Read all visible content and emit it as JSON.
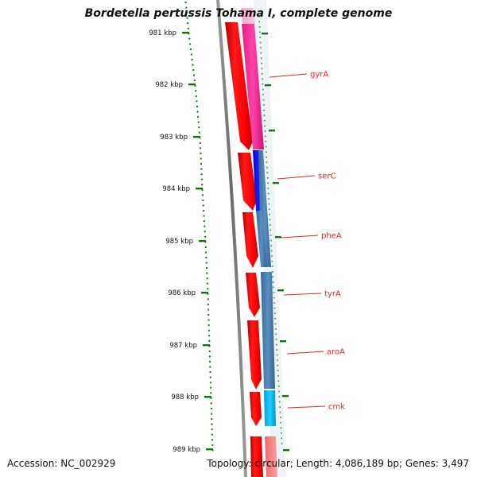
{
  "title": "Bordetella pertussis Tohama I, complete genome",
  "footer": {
    "accession": "Accession: NC_002929",
    "summary": "Topology: circular; Length: 4,086,189 bp; Genes: 3,497"
  },
  "ruler": {
    "unit": "kbp",
    "labels": [
      "981 kbp",
      "982 kbp",
      "983 kbp",
      "984 kbp",
      "985 kbp",
      "986 kbp",
      "987 kbp",
      "988 kbp",
      "989 kbp"
    ]
  },
  "genes": [
    {
      "name": "gyrA",
      "color": "#ee2222"
    },
    {
      "name": "serC",
      "color": "#ee2222"
    },
    {
      "name": "pheA",
      "color": "#ee2222"
    },
    {
      "name": "tyrA",
      "color": "#ee2222"
    },
    {
      "name": "aroA",
      "color": "#ee2222"
    },
    {
      "name": "cmk",
      "color": "#ee2222"
    }
  ],
  "colors": {
    "cds": "#ff0000",
    "backbone": "#808080",
    "ruler": "#0a7a0a",
    "pink": "#ff3399",
    "blue": "#0000ff",
    "steel_blue": "#4b7fb0",
    "cyan": "#00bfff"
  }
}
